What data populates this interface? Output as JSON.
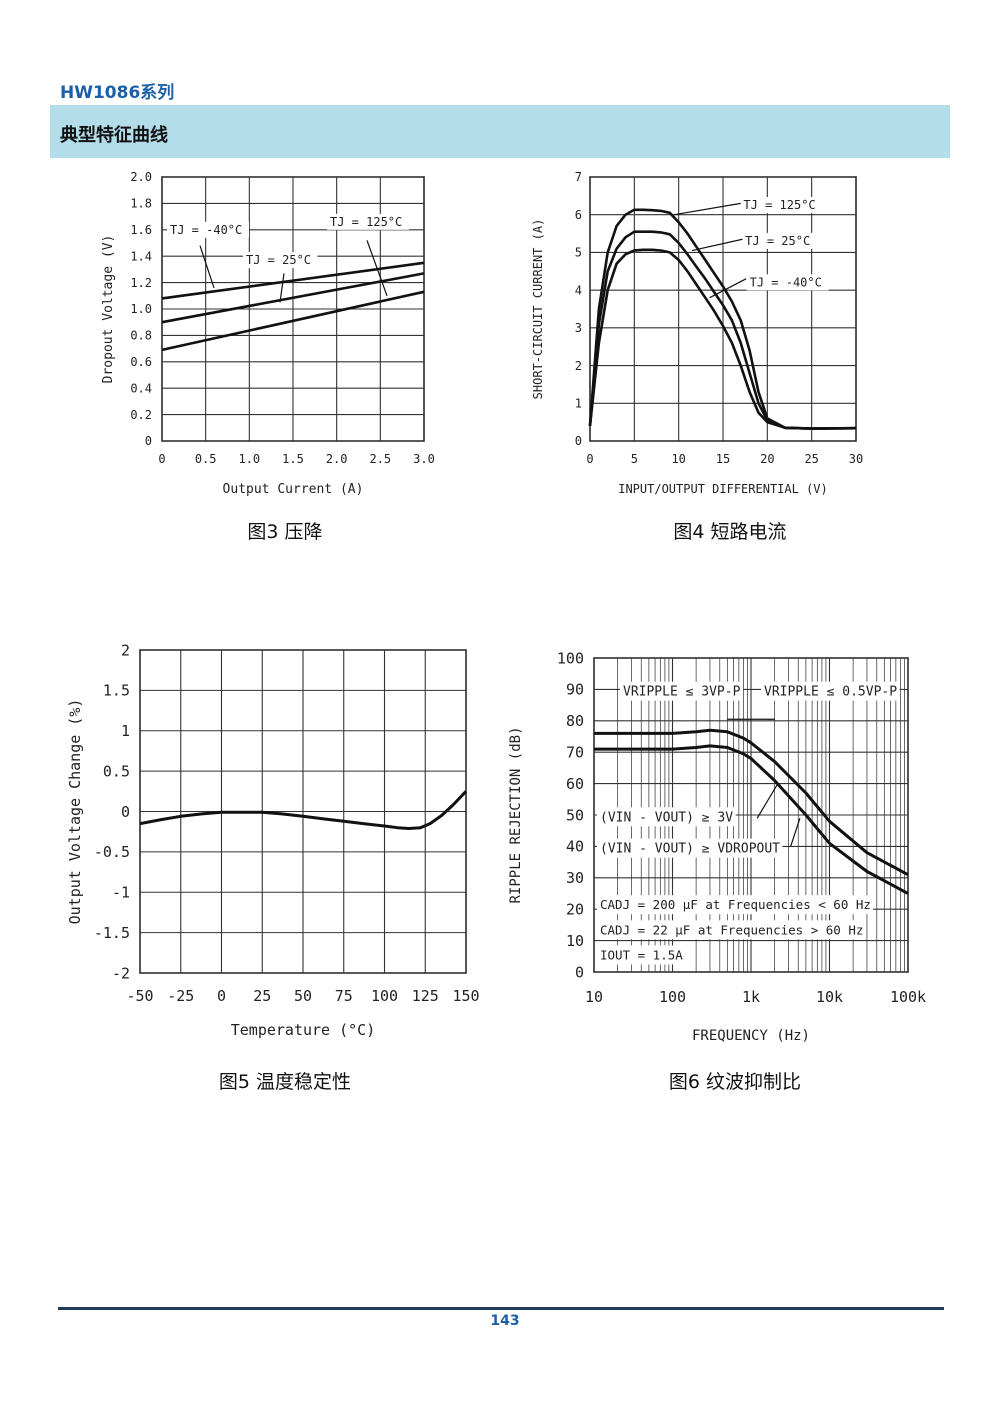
{
  "header": {
    "series_title": "HW1086系列",
    "section_title": "典型特征曲线"
  },
  "footer": {
    "page_number": "143"
  },
  "chart_data": [
    {
      "id": "fig3",
      "type": "line",
      "caption": "图3  压降",
      "xlabel": "Output Current (A)",
      "ylabel": "Dropout Voltage (V)",
      "xlim": [
        0,
        3.0
      ],
      "ylim": [
        0,
        2.0
      ],
      "xticks": [
        "0",
        "0.5",
        "1.0",
        "1.5",
        "2.0",
        "2.5",
        "3.0"
      ],
      "yticks": [
        "0",
        "0.2",
        "0.4",
        "0.6",
        "0.8",
        "1.0",
        "1.2",
        "1.4",
        "1.6",
        "1.8",
        "2.0"
      ],
      "grid": true,
      "series": [
        {
          "name": "TJ = -40°C",
          "x": [
            0,
            3.0
          ],
          "y": [
            1.08,
            1.35
          ]
        },
        {
          "name": "TJ = 25°C",
          "x": [
            0,
            3.0
          ],
          "y": [
            0.9,
            1.27
          ]
        },
        {
          "name": "TJ = 125°C",
          "x": [
            0,
            3.0
          ],
          "y": [
            0.69,
            1.13
          ]
        }
      ],
      "annotations": [
        "TJ = -40°C",
        "TJ = 25°C",
        "TJ = 125°C"
      ]
    },
    {
      "id": "fig4",
      "type": "line",
      "caption": "图4  短路电流",
      "xlabel": "INPUT/OUTPUT DIFFERENTIAL (V)",
      "ylabel": "SHORT-CIRCUIT CURRENT (A)",
      "xlim": [
        0,
        30
      ],
      "ylim": [
        0,
        7
      ],
      "xticks": [
        "0",
        "5",
        "10",
        "15",
        "20",
        "25",
        "30"
      ],
      "yticks": [
        "0",
        "1",
        "2",
        "3",
        "4",
        "5",
        "6",
        "7"
      ],
      "grid": true,
      "series": [
        {
          "name": "TJ = 125°C",
          "x": [
            0,
            1,
            2,
            3,
            4,
            5,
            6,
            7,
            8,
            9,
            10,
            11,
            12,
            13,
            14,
            15,
            16,
            17,
            18,
            19,
            20,
            22,
            25,
            30
          ],
          "y": [
            0.4,
            3.5,
            5.0,
            5.7,
            6.0,
            6.13,
            6.13,
            6.12,
            6.1,
            6.05,
            5.8,
            5.5,
            5.15,
            4.8,
            4.45,
            4.1,
            3.7,
            3.2,
            2.4,
            1.3,
            0.6,
            0.35,
            0.33,
            0.34
          ]
        },
        {
          "name": "TJ = 25°C",
          "x": [
            0,
            1,
            2,
            3,
            4,
            5,
            6,
            7,
            8,
            9,
            10,
            11,
            12,
            13,
            14,
            15,
            16,
            17,
            18,
            19,
            20,
            22,
            25,
            30
          ],
          "y": [
            0.4,
            3.1,
            4.5,
            5.1,
            5.4,
            5.55,
            5.55,
            5.55,
            5.53,
            5.48,
            5.25,
            4.95,
            4.62,
            4.3,
            3.95,
            3.6,
            3.2,
            2.6,
            1.8,
            1.0,
            0.55,
            0.35,
            0.33,
            0.34
          ]
        },
        {
          "name": "TJ = -40°C",
          "x": [
            0,
            1,
            2,
            3,
            4,
            5,
            6,
            7,
            8,
            9,
            10,
            11,
            12,
            13,
            14,
            15,
            16,
            17,
            18,
            19,
            20,
            22,
            25,
            30
          ],
          "y": [
            0.4,
            2.6,
            4.0,
            4.7,
            4.95,
            5.05,
            5.07,
            5.07,
            5.05,
            5.0,
            4.8,
            4.5,
            4.15,
            3.8,
            3.45,
            3.05,
            2.6,
            2.0,
            1.3,
            0.75,
            0.5,
            0.35,
            0.33,
            0.34
          ]
        }
      ],
      "annotations": [
        "TJ = 125°C",
        "TJ = 25°C",
        "TJ = -40°C"
      ]
    },
    {
      "id": "fig5",
      "type": "line",
      "caption": "图5  温度稳定性",
      "xlabel": "Temperature (°C)",
      "ylabel": "Output Voltage Change (%)",
      "xlim": [
        -50,
        150
      ],
      "ylim": [
        -2,
        2
      ],
      "xticks": [
        "-50",
        "-25",
        "0",
        "25",
        "50",
        "75",
        "100",
        "125",
        "150"
      ],
      "yticks": [
        "-2",
        "-1.5",
        "-1",
        "-0.5",
        "0",
        "0.5",
        "1",
        "1.5",
        "2"
      ],
      "grid": true,
      "series": [
        {
          "x": [
            -50,
            -37,
            -25,
            -12,
            0,
            12,
            25,
            37,
            50,
            62,
            75,
            87,
            100,
            108,
            115,
            122,
            128,
            135,
            142,
            150
          ],
          "y": [
            -0.15,
            -0.1,
            -0.06,
            -0.03,
            -0.01,
            -0.01,
            -0.01,
            -0.03,
            -0.06,
            -0.09,
            -0.12,
            -0.15,
            -0.18,
            -0.2,
            -0.21,
            -0.2,
            -0.15,
            -0.05,
            0.08,
            0.25
          ]
        }
      ]
    },
    {
      "id": "fig6",
      "type": "line",
      "caption": "图6  纹波抑制比",
      "xlabel": "FREQUENCY (Hz)",
      "ylabel": "RIPPLE REJECTION (dB)",
      "xscale": "log",
      "xlim": [
        10,
        100000
      ],
      "ylim": [
        0,
        100
      ],
      "xticks": [
        "10",
        "100",
        "1k",
        "10k",
        "100k"
      ],
      "yticks": [
        "0",
        "10",
        "20",
        "30",
        "40",
        "50",
        "60",
        "70",
        "80",
        "90",
        "100"
      ],
      "grid": true,
      "series": [
        {
          "name": "(VIN - VOUT) ≥ 3V",
          "x": [
            10,
            30,
            100,
            200,
            300,
            500,
            800,
            1000,
            2000,
            5000,
            10000,
            30000,
            100000
          ],
          "y": [
            76,
            76,
            76,
            76.5,
            77,
            76.5,
            74.5,
            73,
            67,
            57,
            48,
            38,
            31
          ]
        },
        {
          "name": "(VIN - VOUT) ≥ VDROPOUT",
          "x": [
            10,
            30,
            100,
            200,
            300,
            500,
            800,
            1000,
            2000,
            5000,
            10000,
            30000,
            100000
          ],
          "y": [
            71,
            71,
            71,
            71.5,
            72,
            71.5,
            69.5,
            68,
            61,
            50,
            41,
            32,
            25
          ]
        }
      ],
      "annotations": {
        "ripple_left": "VRIPPLE ≤ 3VP-P",
        "ripple_right": "VRIPPLE ≤ 0.5VP-P",
        "cond1": "(VIN - VOUT) ≥ 3V",
        "cond2": "(VIN - VOUT) ≥ VDROPOUT",
        "cadj1": "CADJ = 200 µF at Frequencies < 60 Hz",
        "cadj2": "CADJ = 22 µF at Frequencies > 60 Hz",
        "iout": "IOUT = 1.5A"
      }
    }
  ]
}
